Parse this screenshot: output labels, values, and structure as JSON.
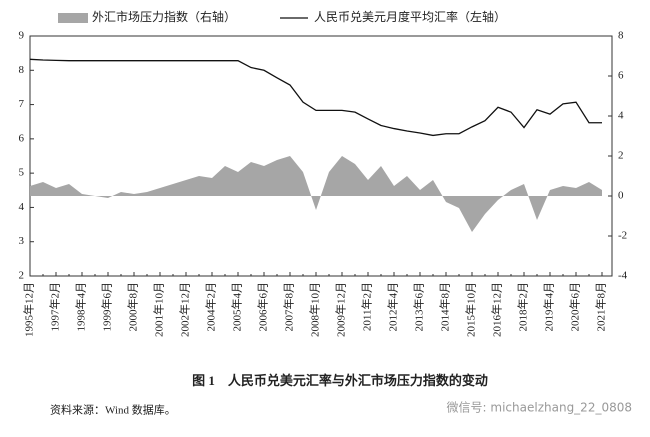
{
  "chart_data": {
    "type": "line",
    "title": "图 1　人民币兑美元汇率与外汇市场压力指数的变动",
    "source": "资料来源：Wind 数据库。",
    "watermark": "微信号: michaelzhang_22_0808",
    "categories": [
      "1995年12月",
      null,
      "1997年2月",
      null,
      "1998年4月",
      null,
      "1999年6月",
      null,
      "2000年8月",
      null,
      "2001年10月",
      null,
      "2002年12月",
      null,
      "2004年2月",
      null,
      "2005年4月",
      null,
      "2006年6月",
      null,
      "2007年8月",
      null,
      "2008年10月",
      null,
      "2009年12月",
      null,
      "2011年2月",
      null,
      "2012年4月",
      null,
      "2013年6月",
      null,
      "2014年8月",
      null,
      "2015年10月",
      null,
      "2016年12月",
      null,
      "2018年2月",
      null,
      "2019年4月",
      null,
      "2020年6月",
      null,
      "2021年8月"
    ],
    "series": [
      {
        "name": "外汇市场压力指数（右轴）",
        "kind": "area",
        "axis": "y2",
        "color": "#a6a6a6",
        "values": [
          0.5,
          0.7,
          0.4,
          0.6,
          0.1,
          0,
          -0.1,
          0.2,
          0.1,
          0.2,
          0.4,
          0.6,
          0.8,
          1.0,
          0.9,
          1.5,
          1.2,
          1.7,
          1.5,
          1.8,
          2.0,
          1.2,
          -0.7,
          1.2,
          2.0,
          1.6,
          0.8,
          1.5,
          0.5,
          1.0,
          0.3,
          0.8,
          -0.3,
          -0.6,
          -1.8,
          -0.9,
          -0.2,
          0.3,
          0.6,
          -1.2,
          0.3,
          0.5,
          0.4,
          0.7,
          0.3
        ]
      },
      {
        "name": "人民币兑美元月度平均汇率（左轴）",
        "kind": "line",
        "axis": "y",
        "color": "#111111",
        "values": [
          8.32,
          8.3,
          8.29,
          8.28,
          8.28,
          8.28,
          8.28,
          8.28,
          8.28,
          8.28,
          8.28,
          8.28,
          8.28,
          8.28,
          8.28,
          8.28,
          8.28,
          8.08,
          8.0,
          7.78,
          7.57,
          7.07,
          6.83,
          6.83,
          6.83,
          6.78,
          6.58,
          6.39,
          6.3,
          6.23,
          6.17,
          6.1,
          6.15,
          6.15,
          6.35,
          6.53,
          6.92,
          6.78,
          6.33,
          6.85,
          6.72,
          7.02,
          7.07,
          6.47,
          6.47
        ]
      }
    ],
    "ylim": [
      2,
      9
    ],
    "yticks": [
      2,
      3,
      4,
      5,
      6,
      7,
      8,
      9
    ],
    "y2lim": [
      -4,
      8
    ],
    "y2ticks": [
      -4,
      -2,
      0,
      2,
      4,
      6,
      8
    ]
  }
}
